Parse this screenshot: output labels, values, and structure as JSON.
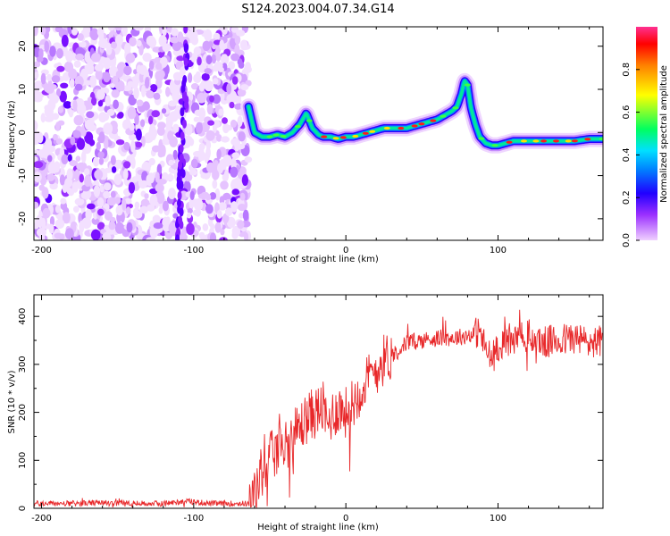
{
  "title": "S124.2023.004.07.34.G14",
  "chart_data": [
    {
      "type": "heatmap",
      "xlabel": "Height of straight line (km)",
      "ylabel": "Frequency (Hz)",
      "xlim": [
        -205,
        169
      ],
      "ylim": [
        -25,
        24.5
      ],
      "xticks": [
        -200,
        -100,
        0,
        100
      ],
      "yticks": [
        -20,
        -10,
        0,
        10,
        20
      ],
      "colorbar": {
        "label": "Normalized spectral amplitude",
        "range": [
          0,
          1
        ],
        "ticks": [
          "0.0",
          "0.2",
          "0.4",
          "0.6",
          "0.8"
        ],
        "tick_values": [
          0,
          0.2,
          0.4,
          0.6,
          0.8
        ],
        "colors": [
          "#f0d0ff",
          "#9b30ff",
          "#2000ff",
          "#0080ff",
          "#00e0ff",
          "#00ff60",
          "#ffff00",
          "#ff8000",
          "#ff0000",
          "#ff3090"
        ]
      },
      "noise_region_x": [
        -205,
        -64
      ],
      "ridge": {
        "x": [
          -64,
          -60,
          -55,
          -50,
          -45,
          -40,
          -35,
          -30,
          -26,
          -22,
          -18,
          -15,
          -10,
          -5,
          0,
          5,
          10,
          15,
          20,
          25,
          30,
          35,
          40,
          45,
          50,
          55,
          60,
          65,
          70,
          73,
          76,
          78,
          80,
          82,
          85,
          88,
          92,
          96,
          100,
          105,
          110,
          120,
          130,
          140,
          150,
          160,
          169
        ],
        "freq": [
          6,
          0,
          -1,
          -1,
          -0.5,
          -1,
          0,
          2,
          4.5,
          1,
          -0.5,
          -1,
          -1,
          -1.5,
          -1,
          -1,
          -0.5,
          0,
          0.5,
          1,
          1,
          1,
          1,
          1.5,
          2,
          2.5,
          3,
          4,
          5,
          6,
          9,
          12,
          11,
          6,
          2,
          -1,
          -2.5,
          -3,
          -3,
          -2.5,
          -2,
          -2,
          -2,
          -2,
          -2,
          -1.5,
          -1.5
        ]
      }
    },
    {
      "type": "line",
      "xlabel": "Height of straight line (km)",
      "ylabel": "SNR (10 * v/v)",
      "xlim": [
        -205,
        169
      ],
      "ylim": [
        0,
        445
      ],
      "xticks": [
        -200,
        -100,
        0,
        100
      ],
      "yticks": [
        0,
        100,
        200,
        300,
        400
      ],
      "line_color": "#e8282a",
      "series": [
        {
          "x": [
            -205,
            -180,
            -160,
            -140,
            -120,
            -105,
            -95,
            -90,
            -80,
            -70,
            -64,
            -60,
            -56,
            -52,
            -48,
            -44,
            -40,
            -35,
            -30,
            -25,
            -20,
            -15,
            -12,
            -10,
            -5,
            0,
            5,
            10,
            15,
            20,
            25,
            30,
            35,
            40,
            50,
            60,
            70,
            80,
            88,
            92,
            96,
            100,
            110,
            120,
            130,
            140,
            150,
            160,
            169
          ],
          "y": [
            10,
            10,
            11,
            10,
            10,
            15,
            12,
            10,
            10,
            10,
            10,
            30,
            70,
            100,
            110,
            120,
            130,
            150,
            170,
            190,
            200,
            210,
            170,
            190,
            210,
            200,
            220,
            250,
            270,
            290,
            310,
            320,
            330,
            345,
            350,
            355,
            355,
            360,
            370,
            330,
            310,
            340,
            350,
            360,
            345,
            350,
            355,
            345,
            350
          ]
        }
      ]
    }
  ]
}
